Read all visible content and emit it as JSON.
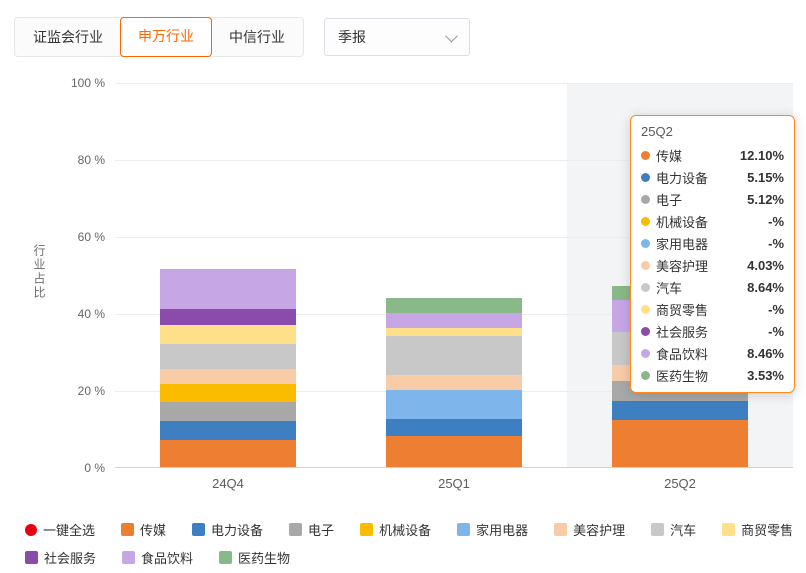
{
  "colors": {
    "accent": "#ff6600",
    "tooltip_border": "#ff8a1c",
    "select_all_red": "#e60012",
    "highlight_band": "#f3f4f6"
  },
  "toolbar": {
    "tabs": [
      {
        "label": "证监会行业",
        "active": false
      },
      {
        "label": "申万行业",
        "active": true
      },
      {
        "label": "中信行业",
        "active": false
      }
    ],
    "period_select": {
      "value": "季报"
    }
  },
  "chart_data": {
    "type": "bar",
    "stacked": true,
    "title": "",
    "xlabel": "",
    "ylabel": "行业占比",
    "ylim": [
      0,
      100
    ],
    "grid": true,
    "y_tick_labels": [
      "0 %",
      "20 %",
      "40 %",
      "60 %",
      "80 %",
      "100 %"
    ],
    "categories": [
      "24Q4",
      "25Q1",
      "25Q2"
    ],
    "highlighted_category": "25Q2",
    "series": [
      {
        "name": "传媒",
        "color": "#ee7e31",
        "values": [
          7.0,
          8.0,
          12.1
        ]
      },
      {
        "name": "电力设备",
        "color": "#3e7fc1",
        "values": [
          5.0,
          4.5,
          5.15
        ]
      },
      {
        "name": "电子",
        "color": "#a8a8a8",
        "values": [
          5.0,
          null,
          5.12
        ]
      },
      {
        "name": "机械设备",
        "color": "#fbbc00",
        "values": [
          4.5,
          null,
          null
        ]
      },
      {
        "name": "家用电器",
        "color": "#7eb6ec",
        "values": [
          null,
          7.5,
          null
        ]
      },
      {
        "name": "美容护理",
        "color": "#f9cca8",
        "values": [
          4.0,
          4.0,
          4.03
        ]
      },
      {
        "name": "汽车",
        "color": "#c8c8c8",
        "values": [
          6.5,
          10.0,
          8.64
        ]
      },
      {
        "name": "商贸零售",
        "color": "#ffe08a",
        "values": [
          5.0,
          2.0,
          null
        ]
      },
      {
        "name": "社会服务",
        "color": "#8a4bab",
        "values": [
          4.0,
          null,
          null
        ]
      },
      {
        "name": "食品饮料",
        "color": "#c7a6e6",
        "values": [
          10.5,
          4.0,
          8.46
        ]
      },
      {
        "name": "医药生物",
        "color": "#89b989",
        "values": [
          null,
          4.0,
          3.53
        ]
      }
    ]
  },
  "tooltip": {
    "title": "25Q2",
    "rows": [
      {
        "name": "传媒",
        "color": "#ee7e31",
        "value": "12.10%"
      },
      {
        "name": "电力设备",
        "color": "#3e7fc1",
        "value": "5.15%"
      },
      {
        "name": "电子",
        "color": "#a8a8a8",
        "value": "5.12%"
      },
      {
        "name": "机械设备",
        "color": "#fbbc00",
        "value": "-%"
      },
      {
        "name": "家用电器",
        "color": "#7eb6ec",
        "value": "-%"
      },
      {
        "name": "美容护理",
        "color": "#f9cca8",
        "value": "4.03%"
      },
      {
        "name": "汽车",
        "color": "#c8c8c8",
        "value": "8.64%"
      },
      {
        "name": "商贸零售",
        "color": "#ffe08a",
        "value": "-%"
      },
      {
        "name": "社会服务",
        "color": "#8a4bab",
        "value": "-%"
      },
      {
        "name": "食品饮料",
        "color": "#c7a6e6",
        "value": "8.46%"
      },
      {
        "name": "医药生物",
        "color": "#89b989",
        "value": "3.53%"
      }
    ]
  },
  "legend": {
    "rows": [
      [
        {
          "label": "一键全选",
          "color": "#e60012",
          "shape": "circle"
        },
        {
          "label": "传媒",
          "color": "#ee7e31",
          "shape": "square"
        },
        {
          "label": "电力设备",
          "color": "#3e7fc1",
          "shape": "square"
        },
        {
          "label": "电子",
          "color": "#a8a8a8",
          "shape": "square"
        },
        {
          "label": "机械设备",
          "color": "#fbbc00",
          "shape": "square"
        },
        {
          "label": "家用电器",
          "color": "#7eb6ec",
          "shape": "square"
        },
        {
          "label": "美容护理",
          "color": "#f9cca8",
          "shape": "square"
        },
        {
          "label": "汽车",
          "color": "#c8c8c8",
          "shape": "square"
        },
        {
          "label": "商贸零售",
          "color": "#ffe08a",
          "shape": "square"
        }
      ],
      [
        {
          "label": "社会服务",
          "color": "#8a4bab",
          "shape": "square"
        },
        {
          "label": "食品饮料",
          "color": "#c7a6e6",
          "shape": "square"
        },
        {
          "label": "医药生物",
          "color": "#89b989",
          "shape": "square"
        }
      ]
    ]
  }
}
